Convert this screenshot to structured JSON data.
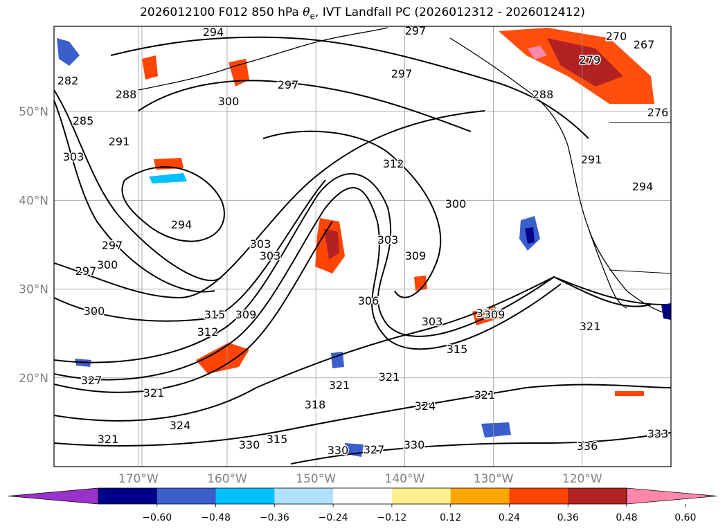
{
  "title": {
    "prefix": "2026012100 F012 850 hPa ",
    "symbol": "θ",
    "subscript": "e",
    "suffix": ", IVT Landfall PC (2026012312 - 2026012412)"
  },
  "map": {
    "lat_labels": [
      {
        "text": "50°N",
        "lat": 50
      },
      {
        "text": "40°N",
        "lat": 40
      },
      {
        "text": "30°N",
        "lat": 30
      },
      {
        "text": "20°N",
        "lat": 20
      }
    ],
    "lon_labels": [
      {
        "text": "170°W",
        "lon": -170
      },
      {
        "text": "160°W",
        "lon": -160
      },
      {
        "text": "150°W",
        "lon": -150
      },
      {
        "text": "140°W",
        "lon": -140
      },
      {
        "text": "130°W",
        "lon": -130
      },
      {
        "text": "120°W",
        "lon": -120
      }
    ],
    "contour_labels": [
      "294",
      "282",
      "285",
      "288",
      "291",
      "303",
      "300",
      "297",
      "294",
      "297",
      "300",
      "297",
      "300",
      "303",
      "312",
      "297",
      "297",
      "288",
      "279",
      "270",
      "267",
      "276",
      "291",
      "294",
      "312",
      "300",
      "303",
      "309",
      "306",
      "303",
      "315",
      "309",
      "312",
      "315",
      "309",
      "303",
      "318",
      "321",
      "321",
      "324",
      "330",
      "321",
      "327",
      "330",
      "327",
      "321",
      "324",
      "321",
      "315",
      "330",
      "336",
      "333",
      "321"
    ],
    "coastline_color": "#000000",
    "contour_color": "#000000",
    "grid_color": "#999999"
  },
  "colorbar": {
    "ticks": [
      "−0.60",
      "−0.48",
      "−0.36",
      "−0.24",
      "−0.12",
      "0.12",
      "0.24",
      "0.36",
      "0.48",
      "0.60"
    ],
    "colors": [
      "#9932cc",
      "#00008b",
      "#3a5fcd",
      "#00bfff",
      "#b0e2ff",
      "#ffffff",
      "#fff08c",
      "#ffa500",
      "#ff4500",
      "#b22222",
      "#ff88aa"
    ]
  }
}
